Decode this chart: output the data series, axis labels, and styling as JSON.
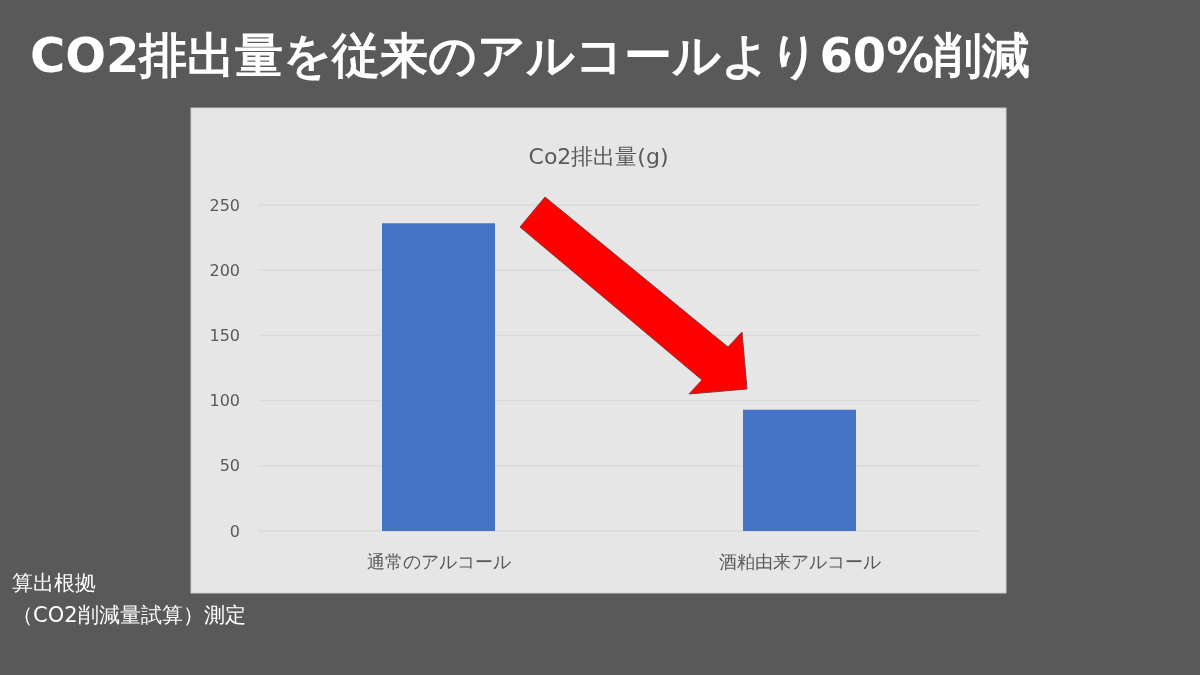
{
  "chart_data": {
    "type": "bar",
    "title": "CO2排出量を従来のアルコールより60%削減",
    "subtitle": "Co2排出量(g)",
    "categories": [
      "通常のアルコール",
      "酒粕由来アルコール"
    ],
    "values": [
      236,
      93
    ],
    "color": "#4472c4",
    "ylim": [
      0,
      250
    ],
    "yticks": [
      0,
      50,
      100,
      150,
      200,
      250
    ],
    "grid": "y",
    "annotations": [
      "算出根拠",
      "（CO2削減量試算）測定"
    ]
  }
}
